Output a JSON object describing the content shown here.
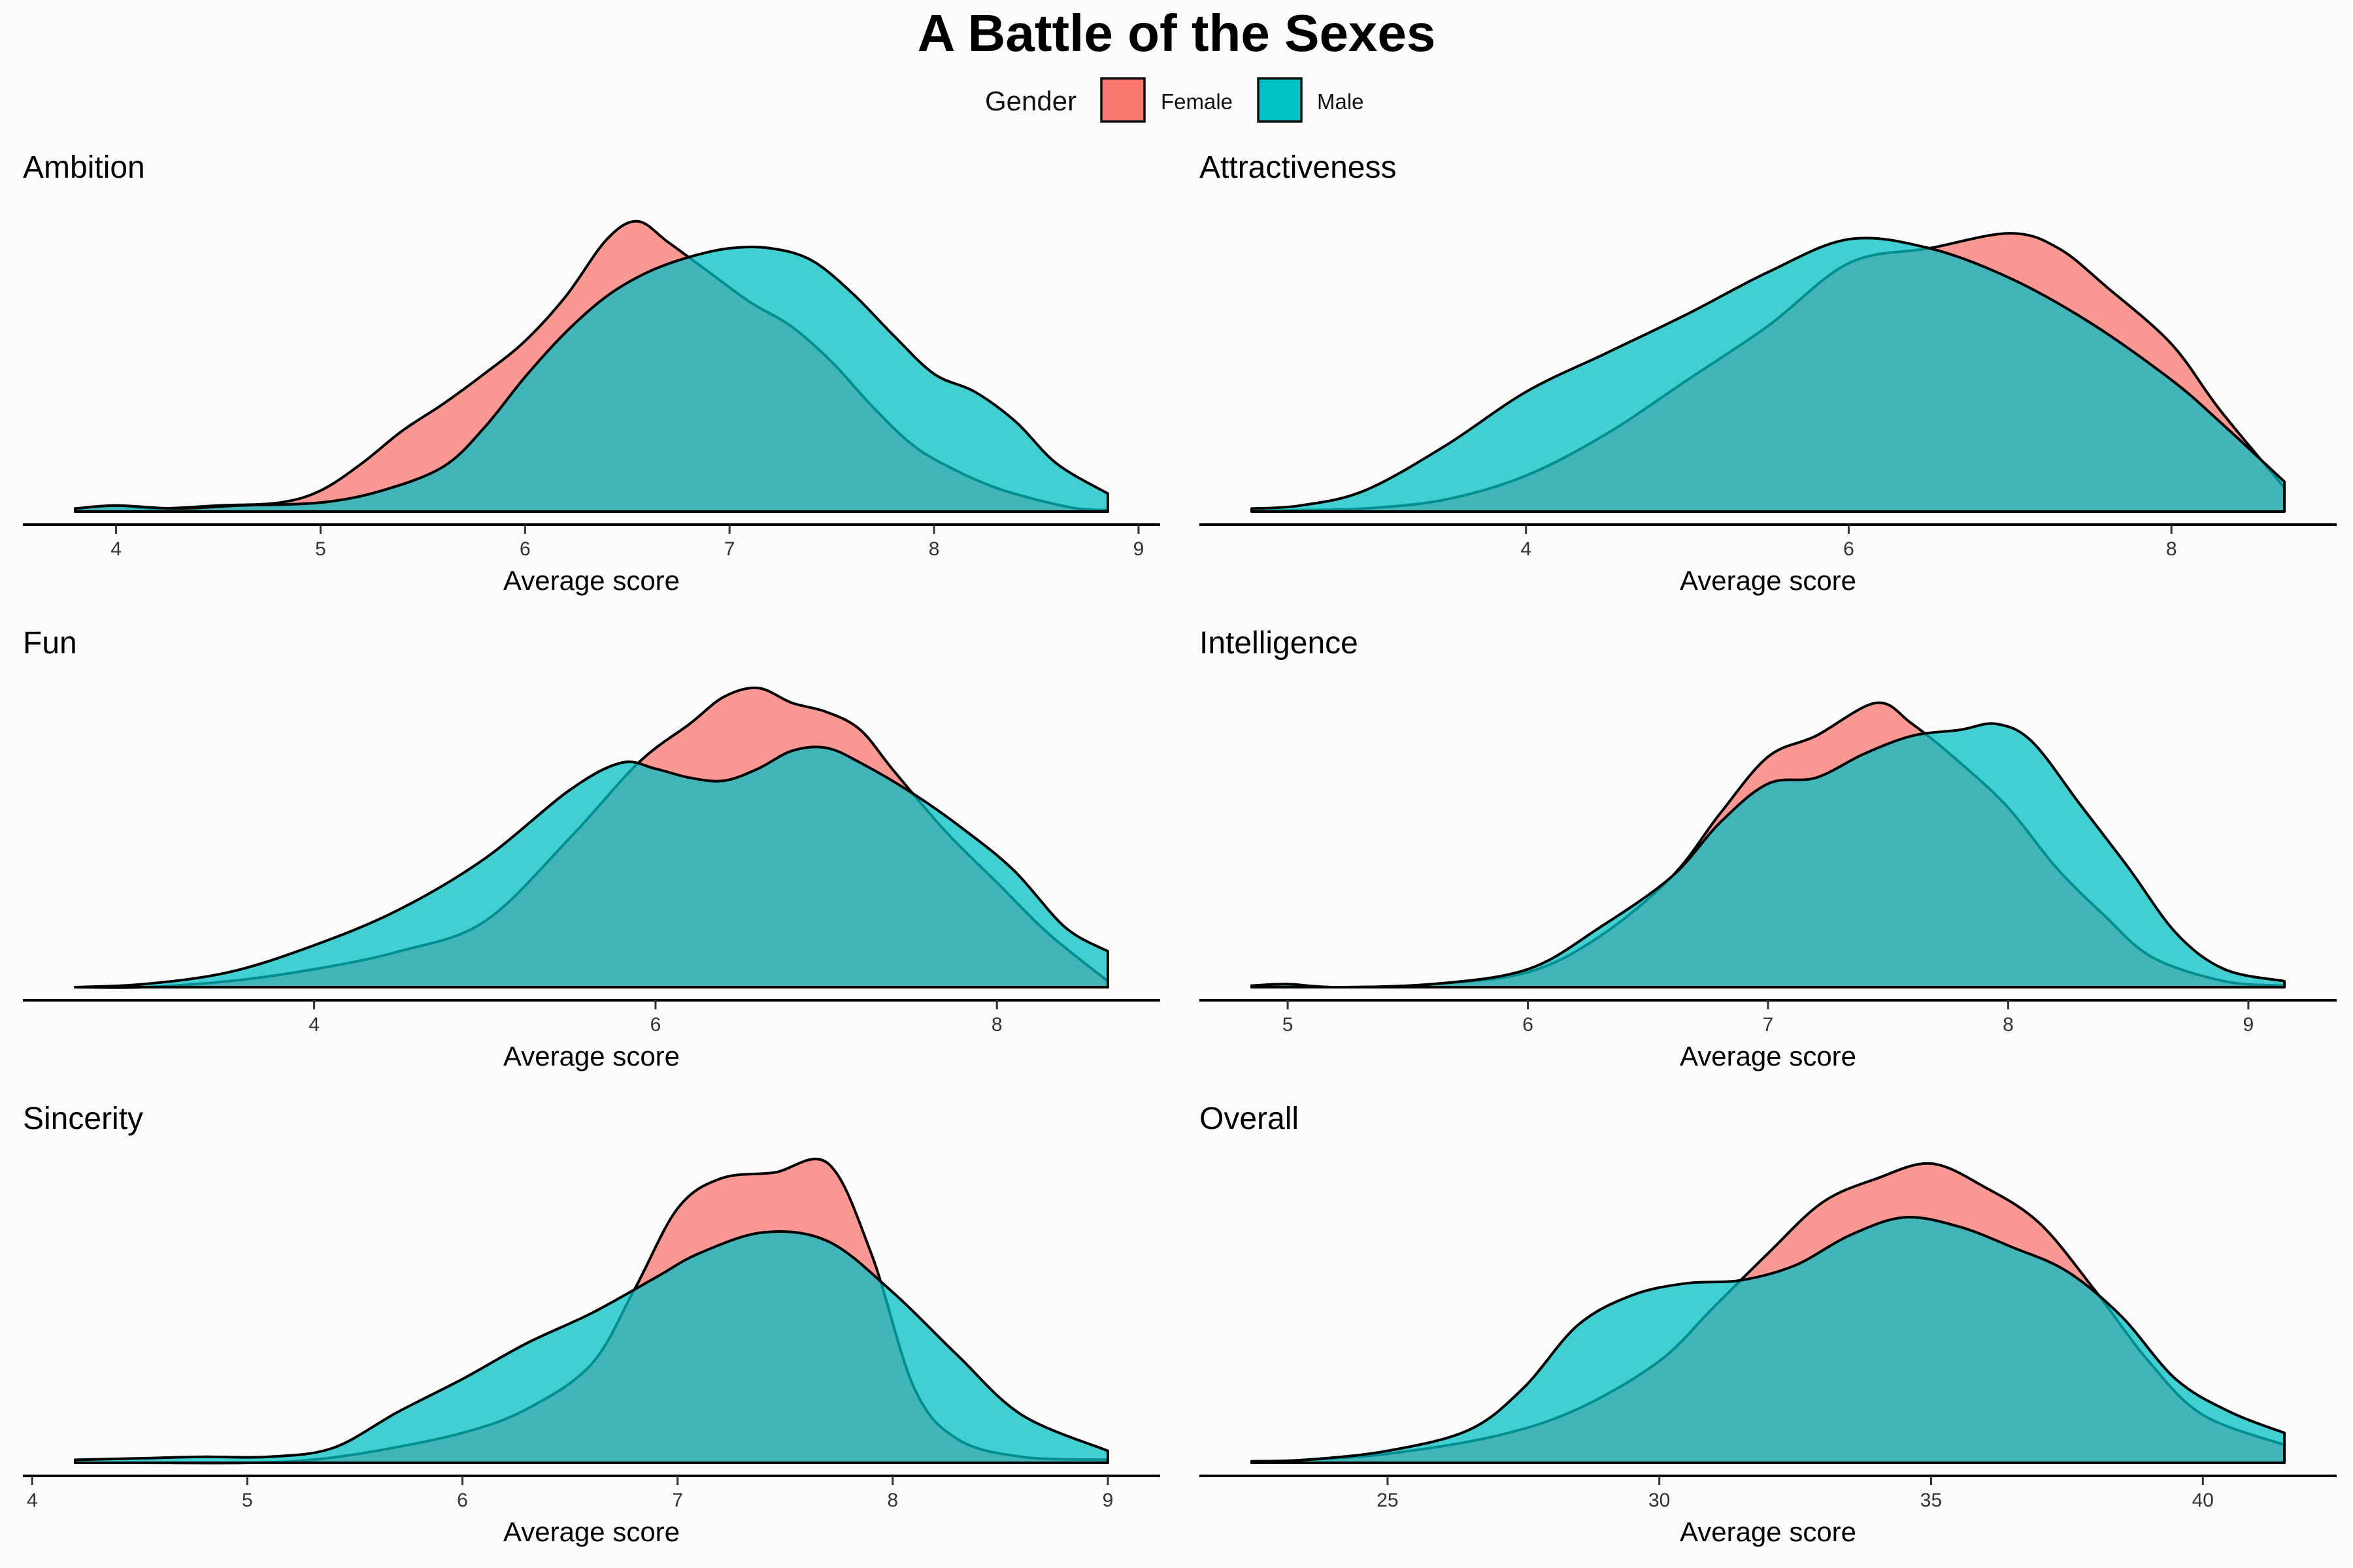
{
  "title": "A Battle of the Sexes",
  "legend": {
    "title": "Gender",
    "items": [
      {
        "label": "Female",
        "color": "#F8766D"
      },
      {
        "label": "Male",
        "color": "#00BFC4"
      }
    ]
  },
  "colors": {
    "female": "#F8766D",
    "male": "#00BFC4",
    "background": "#FBFBFB"
  },
  "chart_data": [
    {
      "type": "area",
      "title": "Ambition",
      "xlabel": "Average score",
      "xlim": [
        3.8,
        8.85
      ],
      "ylim": [
        0,
        1
      ],
      "xticks": [
        4,
        5,
        6,
        7,
        8,
        9
      ],
      "series": [
        {
          "name": "Female",
          "x": [
            3.8,
            4.0,
            4.2,
            4.5,
            4.8,
            5.0,
            5.2,
            5.4,
            5.6,
            5.8,
            6.0,
            6.2,
            6.4,
            6.55,
            6.7,
            6.9,
            7.1,
            7.3,
            7.5,
            7.7,
            7.9,
            8.1,
            8.3,
            8.5,
            8.7,
            8.85
          ],
          "y": [
            0.01,
            0.02,
            0.01,
            0.02,
            0.03,
            0.07,
            0.16,
            0.27,
            0.36,
            0.46,
            0.57,
            0.72,
            0.91,
            0.97,
            0.9,
            0.8,
            0.7,
            0.62,
            0.5,
            0.35,
            0.22,
            0.14,
            0.08,
            0.04,
            0.01,
            0.005
          ]
        },
        {
          "name": "Male",
          "x": [
            3.8,
            4.0,
            4.3,
            4.6,
            5.0,
            5.3,
            5.6,
            5.8,
            6.0,
            6.2,
            6.4,
            6.6,
            6.8,
            7.0,
            7.2,
            7.4,
            7.6,
            7.8,
            8.0,
            8.2,
            8.4,
            8.6,
            8.85
          ],
          "y": [
            0.01,
            0.02,
            0.01,
            0.02,
            0.03,
            0.07,
            0.15,
            0.28,
            0.45,
            0.6,
            0.72,
            0.8,
            0.85,
            0.88,
            0.88,
            0.84,
            0.73,
            0.59,
            0.46,
            0.4,
            0.3,
            0.16,
            0.06
          ]
        }
      ]
    },
    {
      "type": "area",
      "title": "Attractiveness",
      "xlabel": "Average score",
      "xlim": [
        2.3,
        8.7
      ],
      "ylim": [
        0,
        1
      ],
      "xticks": [
        4,
        6,
        8
      ],
      "series": [
        {
          "name": "Female",
          "x": [
            2.3,
            2.6,
            3.0,
            3.5,
            4.0,
            4.5,
            5.0,
            5.5,
            6.0,
            6.5,
            7.0,
            7.3,
            7.6,
            8.0,
            8.3,
            8.7
          ],
          "y": [
            0.0,
            0.005,
            0.01,
            0.04,
            0.12,
            0.26,
            0.44,
            0.62,
            0.83,
            0.88,
            0.93,
            0.88,
            0.75,
            0.56,
            0.34,
            0.08
          ]
        },
        {
          "name": "Male",
          "x": [
            2.3,
            2.6,
            3.0,
            3.5,
            4.0,
            4.5,
            5.0,
            5.5,
            6.0,
            6.5,
            7.0,
            7.5,
            8.0,
            8.3,
            8.7
          ],
          "y": [
            0.01,
            0.02,
            0.07,
            0.22,
            0.4,
            0.53,
            0.66,
            0.8,
            0.91,
            0.88,
            0.78,
            0.63,
            0.44,
            0.3,
            0.1
          ]
        }
      ]
    },
    {
      "type": "area",
      "title": "Fun",
      "xlabel": "Average score",
      "xlim": [
        2.6,
        8.65
      ],
      "ylim": [
        0,
        1
      ],
      "xticks": [
        4,
        6,
        8
      ],
      "series": [
        {
          "name": "Female",
          "x": [
            2.6,
            3.0,
            3.5,
            4.0,
            4.5,
            5.0,
            5.5,
            5.9,
            6.2,
            6.4,
            6.6,
            6.8,
            7.0,
            7.2,
            7.4,
            7.7,
            8.0,
            8.3,
            8.65
          ],
          "y": [
            0.0,
            0.0,
            0.02,
            0.06,
            0.12,
            0.22,
            0.5,
            0.75,
            0.88,
            0.97,
            1.0,
            0.95,
            0.92,
            0.86,
            0.72,
            0.52,
            0.35,
            0.18,
            0.02
          ]
        },
        {
          "name": "Male",
          "x": [
            2.6,
            3.0,
            3.5,
            4.0,
            4.5,
            5.0,
            5.5,
            5.8,
            6.0,
            6.2,
            6.4,
            6.6,
            6.8,
            7.0,
            7.2,
            7.5,
            7.8,
            8.1,
            8.4,
            8.65
          ],
          "y": [
            0.0,
            0.01,
            0.05,
            0.14,
            0.26,
            0.43,
            0.66,
            0.75,
            0.73,
            0.7,
            0.69,
            0.73,
            0.79,
            0.8,
            0.75,
            0.65,
            0.53,
            0.39,
            0.2,
            0.12
          ]
        }
      ]
    },
    {
      "type": "area",
      "title": "Intelligence",
      "xlabel": "Average score",
      "xlim": [
        4.85,
        9.15
      ],
      "ylim": [
        0,
        1
      ],
      "xticks": [
        5,
        6,
        7,
        8,
        9
      ],
      "series": [
        {
          "name": "Female",
          "x": [
            4.85,
            5.0,
            5.2,
            5.6,
            6.0,
            6.3,
            6.6,
            6.8,
            7.0,
            7.2,
            7.45,
            7.6,
            7.8,
            8.0,
            8.2,
            8.4,
            8.6,
            8.9,
            9.15
          ],
          "y": [
            0.005,
            0.01,
            0.0,
            0.01,
            0.05,
            0.17,
            0.37,
            0.58,
            0.77,
            0.84,
            0.95,
            0.88,
            0.75,
            0.6,
            0.4,
            0.24,
            0.1,
            0.02,
            0.005
          ]
        },
        {
          "name": "Male",
          "x": [
            4.85,
            5.0,
            5.2,
            5.6,
            6.0,
            6.3,
            6.6,
            6.8,
            7.0,
            7.2,
            7.4,
            7.6,
            7.8,
            7.95,
            8.1,
            8.3,
            8.5,
            8.7,
            8.9,
            9.15
          ],
          "y": [
            0.005,
            0.01,
            0.0,
            0.01,
            0.06,
            0.2,
            0.37,
            0.55,
            0.68,
            0.7,
            0.78,
            0.84,
            0.86,
            0.88,
            0.82,
            0.61,
            0.4,
            0.18,
            0.06,
            0.02
          ]
        }
      ]
    },
    {
      "type": "area",
      "title": "Sincerity",
      "xlabel": "Average score",
      "xlim": [
        4.2,
        9.0
      ],
      "ylim": [
        0,
        1
      ],
      "xticks": [
        4,
        5,
        6,
        7,
        8,
        9
      ],
      "series": [
        {
          "name": "Female",
          "x": [
            4.2,
            4.5,
            5.0,
            5.3,
            5.6,
            6.0,
            6.3,
            6.6,
            6.8,
            7.0,
            7.2,
            7.45,
            7.7,
            7.9,
            8.1,
            8.3,
            8.6,
            9.0
          ],
          "y": [
            0.0,
            0.0,
            0.0,
            0.01,
            0.04,
            0.1,
            0.18,
            0.33,
            0.58,
            0.85,
            0.95,
            0.97,
            1.0,
            0.7,
            0.25,
            0.08,
            0.02,
            0.01
          ]
        },
        {
          "name": "Male",
          "x": [
            4.2,
            4.5,
            4.8,
            5.1,
            5.4,
            5.7,
            6.0,
            6.3,
            6.6,
            6.9,
            7.1,
            7.4,
            7.7,
            8.0,
            8.3,
            8.6,
            9.0
          ],
          "y": [
            0.01,
            0.015,
            0.02,
            0.02,
            0.05,
            0.17,
            0.28,
            0.4,
            0.5,
            0.62,
            0.7,
            0.77,
            0.74,
            0.57,
            0.36,
            0.16,
            0.04
          ]
        }
      ]
    },
    {
      "type": "area",
      "title": "Overall",
      "xlabel": "Average score",
      "xlim": [
        22.5,
        41.5
      ],
      "ylim": [
        0,
        1
      ],
      "xticks": [
        25,
        30,
        35,
        40
      ],
      "series": [
        {
          "name": "Female",
          "x": [
            22.5,
            23.5,
            25.0,
            27.0,
            28.5,
            30.0,
            31.0,
            32.0,
            33.0,
            34.0,
            35.0,
            36.0,
            37.0,
            38.0,
            39.0,
            40.0,
            41.5
          ],
          "y": [
            0.0,
            0.01,
            0.03,
            0.09,
            0.18,
            0.34,
            0.52,
            0.7,
            0.87,
            0.95,
            1.0,
            0.92,
            0.8,
            0.58,
            0.34,
            0.16,
            0.06
          ]
        },
        {
          "name": "Male",
          "x": [
            22.5,
            23.5,
            25.0,
            26.5,
            27.5,
            28.5,
            29.5,
            30.5,
            31.5,
            32.5,
            33.5,
            34.5,
            35.5,
            36.5,
            37.5,
            38.5,
            39.5,
            40.5,
            41.5
          ],
          "y": [
            0.005,
            0.01,
            0.04,
            0.11,
            0.25,
            0.46,
            0.56,
            0.6,
            0.61,
            0.66,
            0.76,
            0.82,
            0.79,
            0.72,
            0.64,
            0.49,
            0.28,
            0.17,
            0.1
          ]
        }
      ]
    }
  ]
}
